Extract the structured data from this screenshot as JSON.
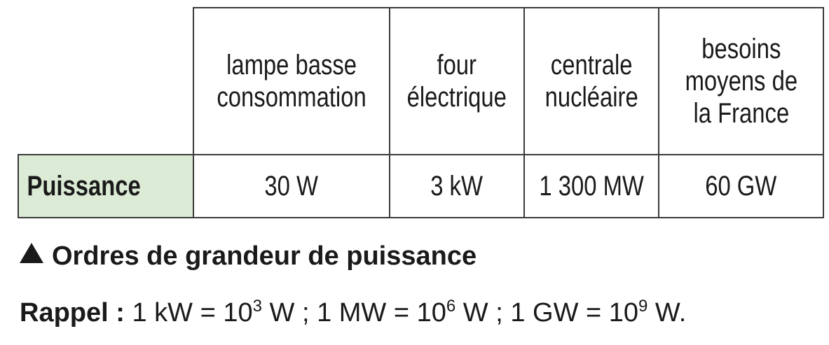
{
  "table": {
    "columns": [
      "lampe basse\nconsommation",
      "four\nélectrique",
      "centrale\nnucléaire",
      "besoins\nmoyens de\nla France"
    ],
    "row_header": "Puissance",
    "values": [
      "30 W",
      "3 kW",
      "1 300 MW",
      "60 GW"
    ]
  },
  "caption": {
    "icon": "triangle-up-icon",
    "text": "Ordres de grandeur de puissance"
  },
  "reminder": {
    "label": "Rappel :",
    "part1": "1 kW = 10",
    "exp1": "3",
    "part2": " W ; 1 MW = 10",
    "exp2": "6",
    "part3": " W ; 1 GW = 10",
    "exp3": "9",
    "part4": " W."
  }
}
